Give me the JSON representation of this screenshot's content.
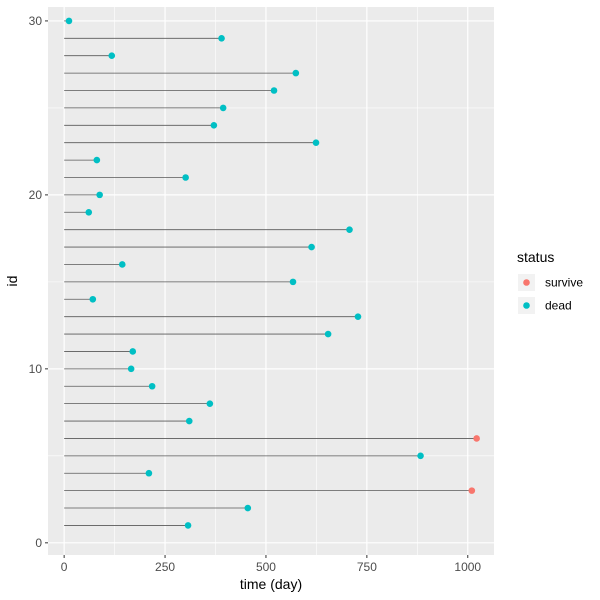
{
  "chart_data": {
    "type": "scatter",
    "xlabel": "time (day)",
    "ylabel": "id",
    "xlim": [
      -40,
      1065
    ],
    "ylim": [
      -0.7,
      30.8
    ],
    "x_ticks": [
      0,
      250,
      500,
      750,
      1000
    ],
    "x_tick_labels": [
      "0",
      "250",
      "500",
      "750",
      "1000"
    ],
    "y_ticks": [
      0,
      10,
      20,
      30
    ],
    "y_tick_labels": [
      "0",
      "10",
      "20",
      "30"
    ],
    "grid": true,
    "legend": {
      "title": "status",
      "position": "right",
      "entries": [
        {
          "label": "survive",
          "color": "#F8766D"
        },
        {
          "label": "dead",
          "color": "#00BFC4"
        }
      ]
    },
    "colors": {
      "survive": "#F8766D",
      "dead": "#00BFC4",
      "segment": "#595959",
      "panel": "#EBEBEB"
    },
    "points": [
      {
        "id": 1,
        "time": 307,
        "status": "dead"
      },
      {
        "id": 2,
        "time": 455,
        "status": "dead"
      },
      {
        "id": 3,
        "time": 1010,
        "status": "survive"
      },
      {
        "id": 4,
        "time": 210,
        "status": "dead"
      },
      {
        "id": 5,
        "time": 883,
        "status": "dead"
      },
      {
        "id": 6,
        "time": 1022,
        "status": "survive"
      },
      {
        "id": 7,
        "time": 310,
        "status": "dead"
      },
      {
        "id": 8,
        "time": 361,
        "status": "dead"
      },
      {
        "id": 9,
        "time": 218,
        "status": "dead"
      },
      {
        "id": 10,
        "time": 166,
        "status": "dead"
      },
      {
        "id": 11,
        "time": 170,
        "status": "dead"
      },
      {
        "id": 12,
        "time": 654,
        "status": "dead"
      },
      {
        "id": 13,
        "time": 728,
        "status": "dead"
      },
      {
        "id": 14,
        "time": 71,
        "status": "dead"
      },
      {
        "id": 15,
        "time": 567,
        "status": "dead"
      },
      {
        "id": 16,
        "time": 144,
        "status": "dead"
      },
      {
        "id": 17,
        "time": 613,
        "status": "dead"
      },
      {
        "id": 18,
        "time": 707,
        "status": "dead"
      },
      {
        "id": 19,
        "time": 61,
        "status": "dead"
      },
      {
        "id": 20,
        "time": 88,
        "status": "dead"
      },
      {
        "id": 21,
        "time": 301,
        "status": "dead"
      },
      {
        "id": 22,
        "time": 81,
        "status": "dead"
      },
      {
        "id": 23,
        "time": 624,
        "status": "dead"
      },
      {
        "id": 24,
        "time": 371,
        "status": "dead"
      },
      {
        "id": 25,
        "time": 394,
        "status": "dead"
      },
      {
        "id": 26,
        "time": 520,
        "status": "dead"
      },
      {
        "id": 27,
        "time": 574,
        "status": "dead"
      },
      {
        "id": 28,
        "time": 118,
        "status": "dead"
      },
      {
        "id": 29,
        "time": 390,
        "status": "dead"
      },
      {
        "id": 30,
        "time": 12,
        "status": "dead"
      }
    ]
  }
}
